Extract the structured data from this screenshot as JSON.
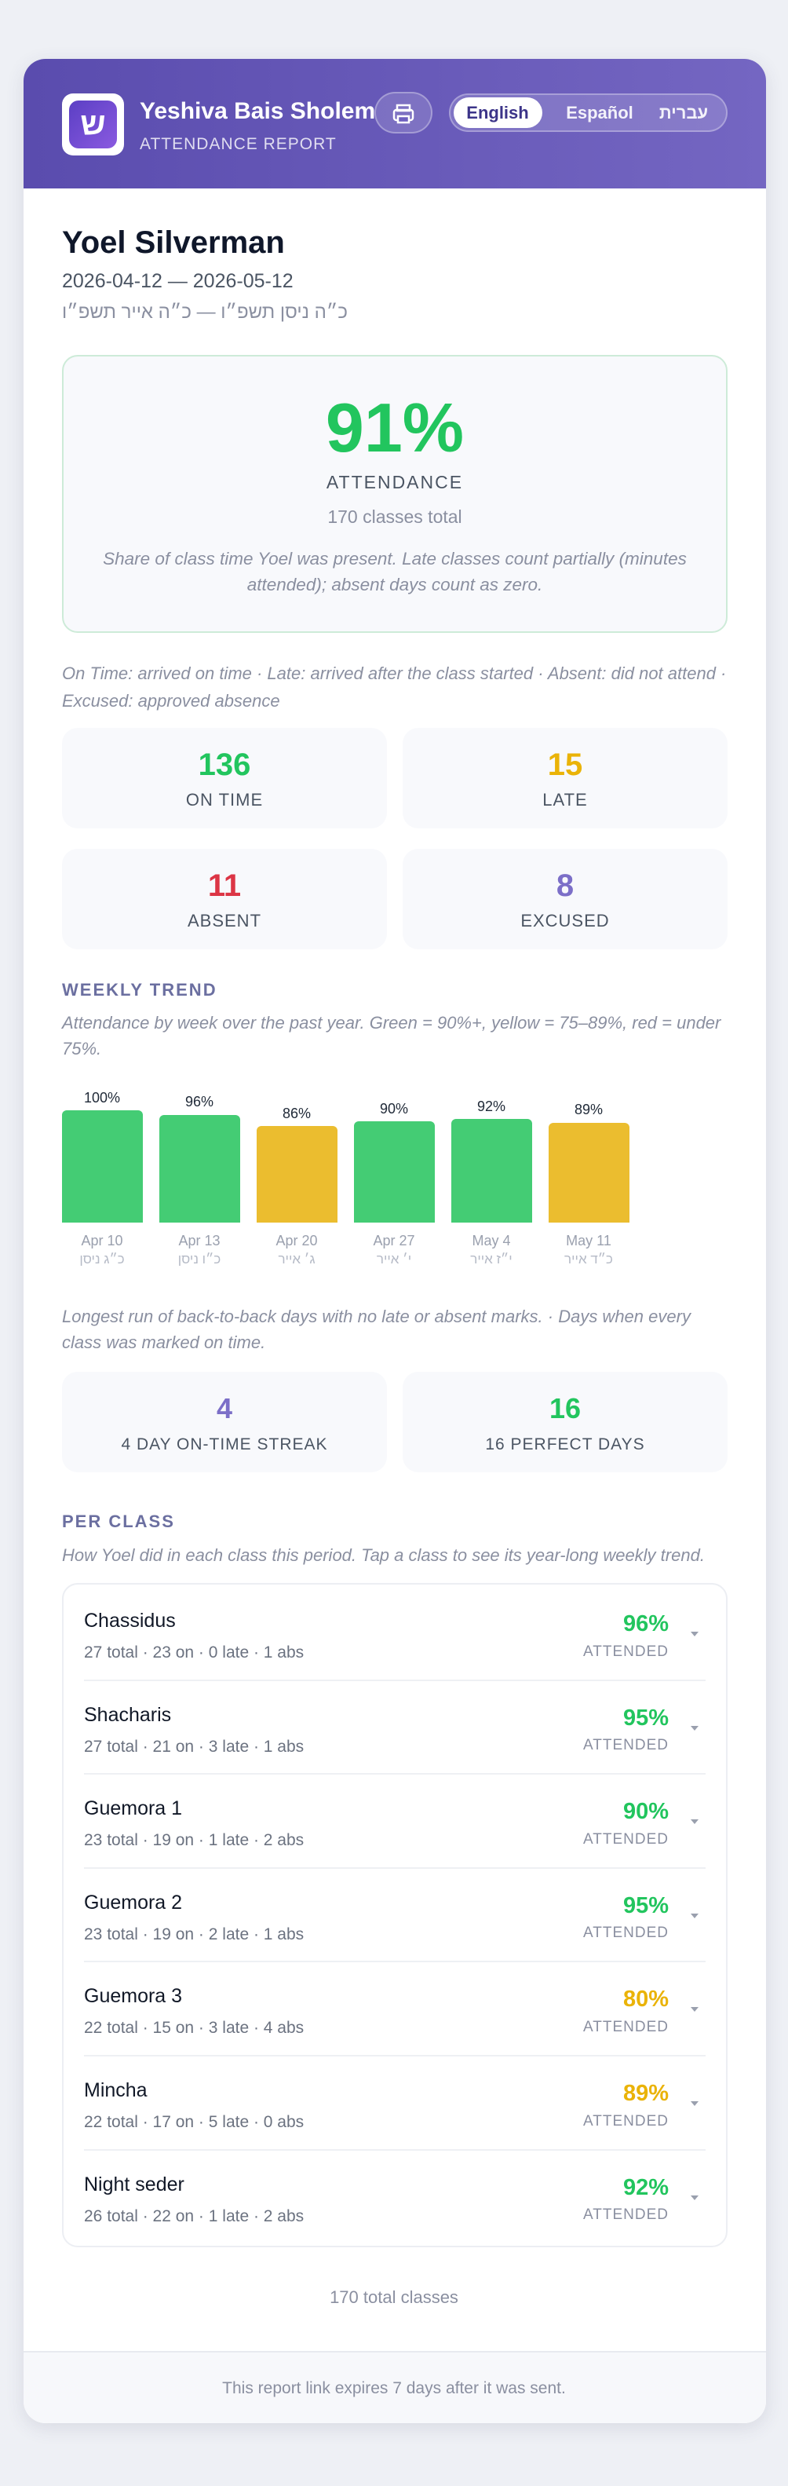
{
  "header": {
    "logo_text": "ש",
    "title": "Yeshiva Bais Sholem",
    "subtitle": "ATTENDANCE REPORT",
    "languages": [
      "English",
      "Español",
      "עברית"
    ],
    "active_language": 0
  },
  "student": {
    "name": "Yoel Silverman",
    "dates": "2026-04-12 — 2026-05-12",
    "hebrew_dates": "כ״ה ניסן תשפ״ו — כ״ה אייר תשפ״ו"
  },
  "summary": {
    "percent": "91%",
    "label": "ATTENDANCE",
    "total": "170 classes total",
    "note": "Share of class time Yoel was present. Late classes count partially (minutes attended); absent days count as zero.",
    "color": "#22c55e"
  },
  "legend": "On Time: arrived on time · Late: arrived after the class started · Absent: did not attend · Excused: approved absence",
  "stats": [
    {
      "value": 136,
      "label": "ON TIME",
      "color": "#22c55e"
    },
    {
      "value": 15,
      "label": "LATE",
      "color": "#eab308"
    },
    {
      "value": 11,
      "label": "ABSENT",
      "color": "#dc3545"
    },
    {
      "value": 8,
      "label": "EXCUSED",
      "color": "#7c6fc8"
    }
  ],
  "weekly_trend": {
    "type": "bar",
    "title": "WEEKLY TREND",
    "subtitle": "Attendance by week over the past year. Green = 90%+, yellow = 75–89%, red = under 75%.",
    "categories": [
      "Apr 10",
      "Apr 13",
      "Apr 20",
      "Apr 27",
      "May 4",
      "May 11"
    ],
    "hebrew_categories": [
      "כ״ג ניסן",
      "כ״ו ניסן",
      "ג׳ אייר",
      "י׳ אייר",
      "י״ז אייר",
      "כ״ד אייר"
    ],
    "values": [
      100,
      96,
      86,
      90,
      92,
      89
    ],
    "value_labels": [
      "100%",
      "96%",
      "86%",
      "90%",
      "92%",
      "89%"
    ],
    "colors": [
      "#44cc74",
      "#44cc74",
      "#ebbd2f",
      "#44cc74",
      "#44cc74",
      "#ebbd2f"
    ],
    "ylim": [
      0,
      100
    ]
  },
  "streak_note": "Longest run of back-to-back days with no late or absent marks. · Days when every class was marked on time.",
  "streaks": [
    {
      "value": 4,
      "label": "4 DAY ON-TIME STREAK",
      "color": "#7c6fc8"
    },
    {
      "value": 16,
      "label": "16 PERFECT DAYS",
      "color": "#22c55e"
    }
  ],
  "per_class": {
    "title": "PER CLASS",
    "subtitle": "How Yoel did in each class this period. Tap a class to see its year-long weekly trend.",
    "attended_label": "ATTENDED",
    "rows": [
      {
        "name": "Chassidus",
        "detail": "27 total · 23 on · 0 late · 1 abs",
        "percent": "96%",
        "color": "#22c55e"
      },
      {
        "name": "Shacharis",
        "detail": "27 total · 21 on · 3 late · 1 abs",
        "percent": "95%",
        "color": "#22c55e"
      },
      {
        "name": "Guemora 1",
        "detail": "23 total · 19 on · 1 late · 2 abs",
        "percent": "90%",
        "color": "#22c55e"
      },
      {
        "name": "Guemora 2",
        "detail": "23 total · 19 on · 2 late · 1 abs",
        "percent": "95%",
        "color": "#22c55e"
      },
      {
        "name": "Guemora 3",
        "detail": "22 total · 15 on · 3 late · 4 abs",
        "percent": "80%",
        "color": "#eab308"
      },
      {
        "name": "Mincha",
        "detail": "22 total · 17 on · 5 late · 0 abs",
        "percent": "89%",
        "color": "#eab308"
      },
      {
        "name": "Night seder",
        "detail": "26 total · 22 on · 1 late · 2 abs",
        "percent": "92%",
        "color": "#22c55e"
      }
    ],
    "total": "170 total classes"
  },
  "footer": "This report link expires 7 days after it was sent."
}
